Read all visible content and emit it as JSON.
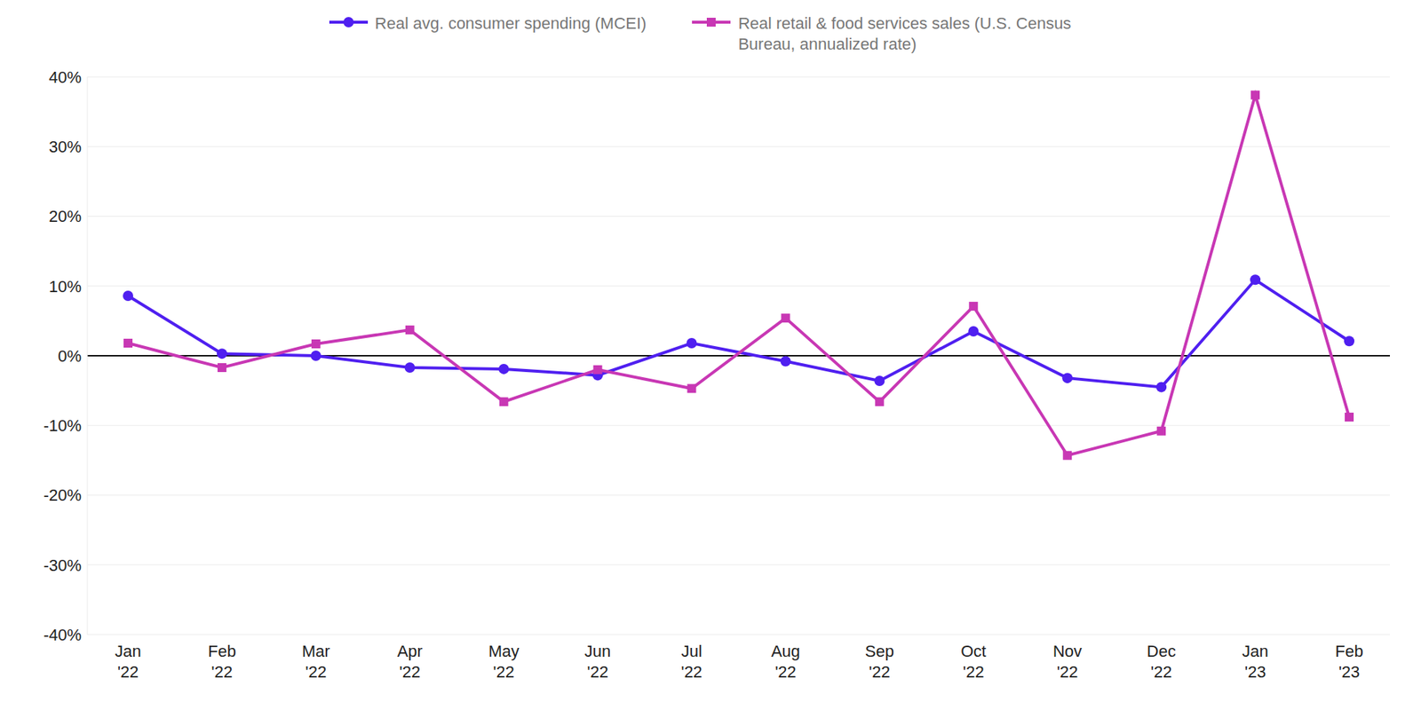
{
  "chart_data": {
    "type": "line",
    "categories": [
      "Jan '22",
      "Feb '22",
      "Mar '22",
      "Apr '22",
      "May '22",
      "Jun '22",
      "Jul '22",
      "Aug '22",
      "Sep '22",
      "Oct '22",
      "Nov '22",
      "Dec '22",
      "Jan '23",
      "Feb '23"
    ],
    "series": [
      {
        "name": "Real avg. consumer spending (MCEI)",
        "color": "#4f1ff0",
        "marker": "circle",
        "values": [
          8.6,
          0.3,
          0.0,
          -1.7,
          -1.9,
          -2.8,
          1.8,
          -0.8,
          -3.6,
          3.5,
          -3.2,
          -4.5,
          10.9,
          2.1
        ]
      },
      {
        "name": "Real retail & food services sales (U.S. Census Bureau, annualized rate)",
        "color": "#c837b4",
        "marker": "square",
        "values": [
          1.8,
          -1.7,
          1.7,
          3.7,
          -6.6,
          -2.0,
          -4.7,
          5.4,
          -6.6,
          7.1,
          -14.3,
          -10.8,
          37.4,
          -8.8
        ]
      }
    ],
    "ylim": [
      -40,
      40
    ],
    "yticks": [
      {
        "value": -40,
        "label": "-40%"
      },
      {
        "value": -30,
        "label": "-30%"
      },
      {
        "value": -20,
        "label": "-20%"
      },
      {
        "value": -10,
        "label": "-10%"
      },
      {
        "value": 0,
        "label": "0%"
      },
      {
        "value": 10,
        "label": "10%"
      },
      {
        "value": 20,
        "label": "20%"
      },
      {
        "value": 30,
        "label": "30%"
      },
      {
        "value": 40,
        "label": "40%"
      }
    ],
    "grid": true,
    "legend": "top"
  }
}
